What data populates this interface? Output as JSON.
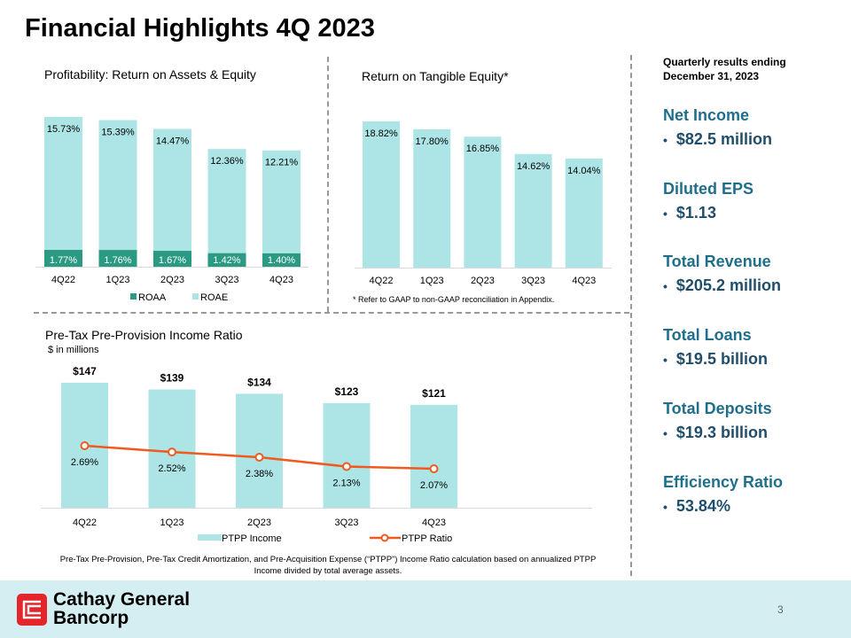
{
  "title": "Financial Highlights 4Q 2023",
  "page_number": "3",
  "company": {
    "line1": "Cathay General",
    "line2": "Bancorp"
  },
  "colors": {
    "roae": "#ade5e6",
    "roaa": "#2a9a83",
    "ptpp_bar": "#ade5e6",
    "ptpp_line": "#f05a1e",
    "accent": "#1f6e8c"
  },
  "summary": {
    "heading": "Quarterly results ending December 31, 2023",
    "items": [
      {
        "label": "Net Income",
        "value": "$82.5 million"
      },
      {
        "label": "Diluted EPS",
        "value": "$1.13"
      },
      {
        "label": "Total Revenue",
        "value": "$205.2 million"
      },
      {
        "label": "Total Loans",
        "value": "$19.5 billion"
      },
      {
        "label": "Total Deposits",
        "value": "$19.3 billion"
      },
      {
        "label": "Efficiency Ratio",
        "value": "53.84%"
      }
    ]
  },
  "chart_data": [
    {
      "type": "bar",
      "title": "Profitability: Return on Assets & Equity",
      "categories": [
        "4Q22",
        "1Q23",
        "2Q23",
        "3Q23",
        "4Q23"
      ],
      "series": [
        {
          "name": "ROAA",
          "values": [
            1.77,
            1.76,
            1.67,
            1.42,
            1.4
          ],
          "labels": [
            "1.77%",
            "1.76%",
            "1.67%",
            "1.42%",
            "1.40%"
          ]
        },
        {
          "name": "ROAE",
          "values": [
            15.73,
            15.39,
            14.47,
            12.36,
            12.21
          ],
          "labels": [
            "15.73%",
            "15.39%",
            "14.47%",
            "12.36%",
            "12.21%"
          ]
        }
      ],
      "legend": "bottom"
    },
    {
      "type": "bar",
      "title": "Return on Tangible Equity*",
      "categories": [
        "4Q22",
        "1Q23",
        "2Q23",
        "3Q23",
        "4Q23"
      ],
      "values": [
        18.82,
        17.8,
        16.85,
        14.62,
        14.04
      ],
      "labels": [
        "18.82%",
        "17.80%",
        "16.85%",
        "14.62%",
        "14.04%"
      ],
      "footnote": "* Refer to GAAP to non-GAAP reconciliation in Appendix."
    },
    {
      "type": "bar+line",
      "title": "Pre-Tax Pre-Provision Income Ratio",
      "subtitle": "$ in millions",
      "categories": [
        "4Q22",
        "1Q23",
        "2Q23",
        "3Q23",
        "4Q23"
      ],
      "series": [
        {
          "name": "PTPP Income",
          "values": [
            147,
            139,
            134,
            123,
            121
          ],
          "labels": [
            "$147",
            "$139",
            "$134",
            "$123",
            "$121"
          ]
        },
        {
          "name": "PTPP Ratio",
          "values": [
            2.69,
            2.52,
            2.38,
            2.13,
            2.07
          ],
          "labels": [
            "2.69%",
            "2.52%",
            "2.38%",
            "2.13%",
            "2.07%"
          ]
        }
      ],
      "legend": "bottom",
      "footnote": "Pre-Tax Pre-Provision, Pre-Tax Credit Amortization, and Pre-Acquisition Expense (“PTPP”)  Income Ratio calculation based on annualized PTPP  Income divided by total average assets."
    }
  ]
}
